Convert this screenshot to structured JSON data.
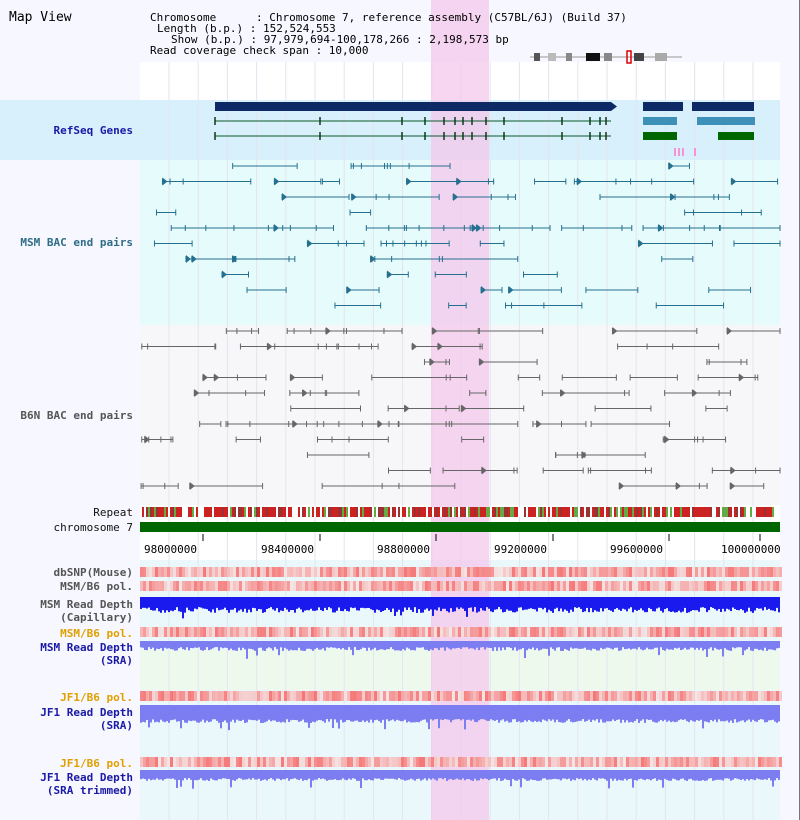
{
  "map_view": {
    "title": "Map View",
    "header_lines": [
      "Chromosome      : Chromosome 7, reference assembly (C57BL/6J) (Build 37)",
      "Length (b.p.) : 152,524,553",
      "Show (b.p.) : 97,979,694-100,178,266 : 2,198,573 bp",
      "Read coverage check span : 10,000"
    ]
  },
  "tracks": {
    "refseq_genes": "RefSeq Genes",
    "msm_bac": "MSM BAC end pairs",
    "b6n_bac": "B6N BAC end pairs",
    "repeat": "Repeat",
    "chromosome": "chromosome 7",
    "dbsnp": "dbSNP(Mouse)",
    "msm_b6_pol_1": "MSM/B6 pol.",
    "msm_read_depth_cap": "MSM Read Depth\n(Capillary)",
    "msm_b6_pol_2": "MSM/B6 pol.",
    "msm_read_depth_sra": "MSM Read Depth\n(SRA)",
    "jf1_b6_pol_1": "JF1/B6 pol.",
    "jf1_read_depth_sra": "JF1 Read Depth\n(SRA)",
    "jf1_b6_pol_2": "JF1/B6 pol.",
    "jf1_read_depth_trim": "JF1 Read Depth\n(SRA trimmed)"
  },
  "axis_ticks": [
    "98000000",
    "98400000",
    "98800000",
    "99200000",
    "99600000",
    "100000000"
  ],
  "colors": {
    "highlight": "#f4c8ec",
    "refseq_bg": "#d8f0fb",
    "msm_bg": "#e6fbfb",
    "b6n_bg": "#f7f7fa",
    "navy": "#0d2a66",
    "teal": "#26708f",
    "green": "#006600",
    "depth_blue": "#1a1aee",
    "depth_light": "#7d7df2"
  }
}
